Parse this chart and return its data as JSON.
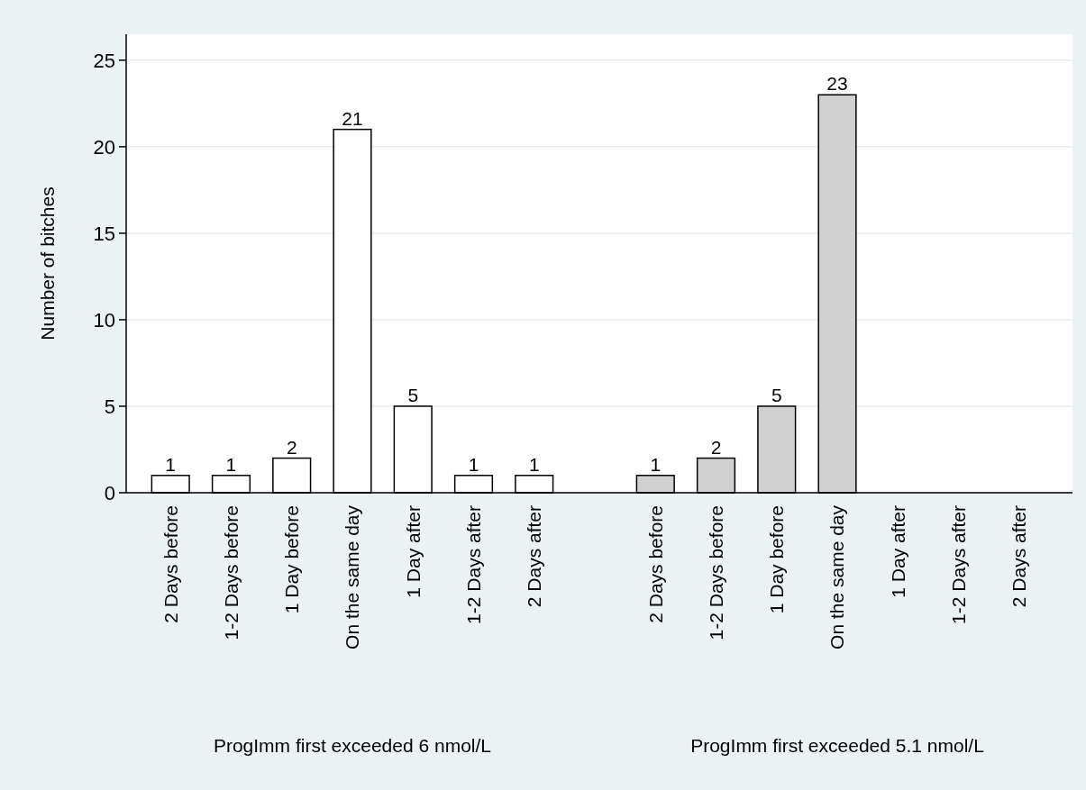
{
  "chart_data": {
    "type": "bar",
    "ylabel": "Number of bitches",
    "categories": [
      "2 Days before",
      "1-2 Days before",
      "1 Day before",
      "On the same day",
      "1 Day after",
      "1-2 Days after",
      "2 Days after",
      null,
      "2 Days before",
      "1-2 Days before",
      "1 Day before",
      "On the same day",
      "1 Day after",
      "1-2 Days after",
      "2 Days after"
    ],
    "values": [
      1,
      1,
      2,
      21,
      5,
      1,
      1,
      null,
      1,
      2,
      5,
      23,
      0,
      0,
      0
    ],
    "colors": [
      "#ffffff",
      "#ffffff",
      "#ffffff",
      "#ffffff",
      "#ffffff",
      "#ffffff",
      "#ffffff",
      null,
      "#d0d0d0",
      "#d0d0d0",
      "#d0d0d0",
      "#d0d0d0",
      "#d0d0d0",
      "#d0d0d0",
      "#d0d0d0"
    ],
    "value_labels": [
      "1",
      "1",
      "2",
      "21",
      "5",
      "1",
      "1",
      null,
      "1",
      "2",
      "5",
      "23",
      null,
      null,
      null
    ],
    "ylim": [
      0,
      26.5
    ],
    "yticks": [
      0,
      5,
      10,
      15,
      20,
      25
    ],
    "grid": "y",
    "annotations": [
      "ProgImm first exceeded 6 nmol/L",
      "ProgImm first exceeded 5.1 nmol/L"
    ]
  }
}
